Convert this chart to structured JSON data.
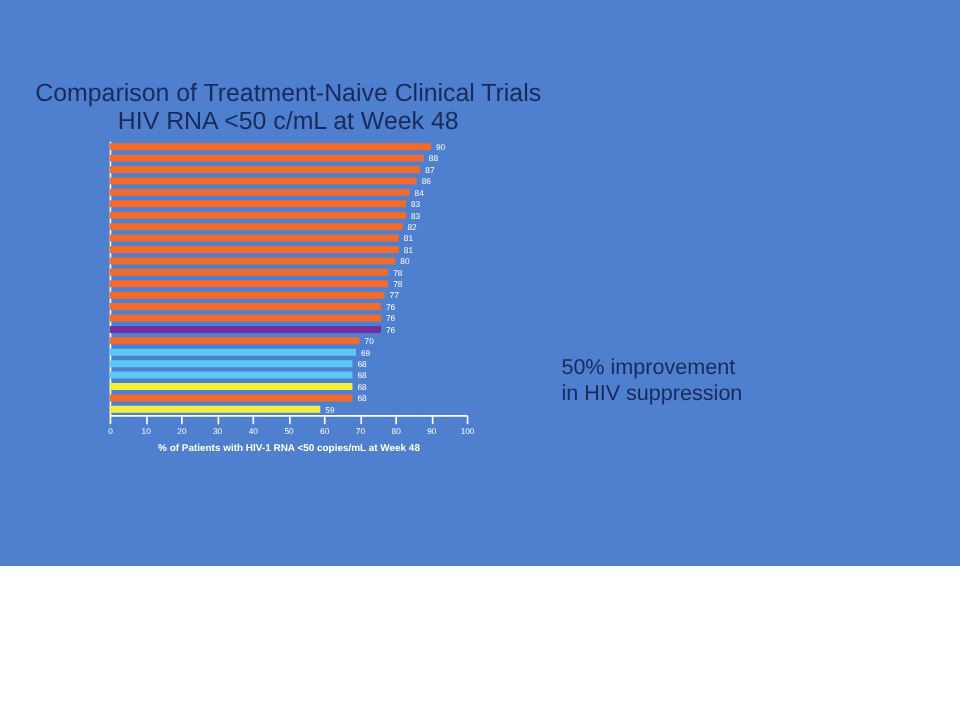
{
  "chart_data": {
    "type": "bar",
    "orientation": "horizontal",
    "title": [
      "Comparison of Treatment-Naive Clinical Trials",
      "HIV RNA <50 c/mL at Week 48"
    ],
    "xlabel": "% of Patients with HIV-1 RNA <50 copies/mL at Week 48",
    "categories": [
      null,
      null,
      null,
      null,
      null,
      null,
      null,
      null,
      null,
      null,
      null,
      null,
      null,
      null,
      null,
      null,
      null,
      null,
      null,
      null,
      null,
      null,
      null,
      null
    ],
    "values": [
      90,
      88,
      87,
      86,
      84,
      83,
      83,
      82,
      81,
      81,
      80,
      78,
      78,
      77,
      76,
      76,
      76,
      70,
      69,
      68,
      68,
      68,
      68,
      59
    ],
    "colors": [
      "#f26b2a",
      "#f26b2a",
      "#f26b2a",
      "#f26b2a",
      "#f26b2a",
      "#f26b2a",
      "#f26b2a",
      "#f26b2a",
      "#f26b2a",
      "#f26b2a",
      "#f26b2a",
      "#f26b2a",
      "#f26b2a",
      "#f26b2a",
      "#f26b2a",
      "#f26b2a",
      "#7030a0",
      "#f26b2a",
      "#5bc8f5",
      "#5bc8f5",
      "#5bc8f5",
      "#f0f040",
      "#f26b2a",
      "#f0f040"
    ],
    "xlim": [
      0,
      100
    ],
    "xticks": [
      0,
      10,
      20,
      30,
      40,
      50,
      60,
      70,
      80,
      90,
      100
    ],
    "data_labels": true,
    "tick_labels": "x",
    "grid": false,
    "annotations": [
      "50% improvement in HIV suppression"
    ]
  }
}
